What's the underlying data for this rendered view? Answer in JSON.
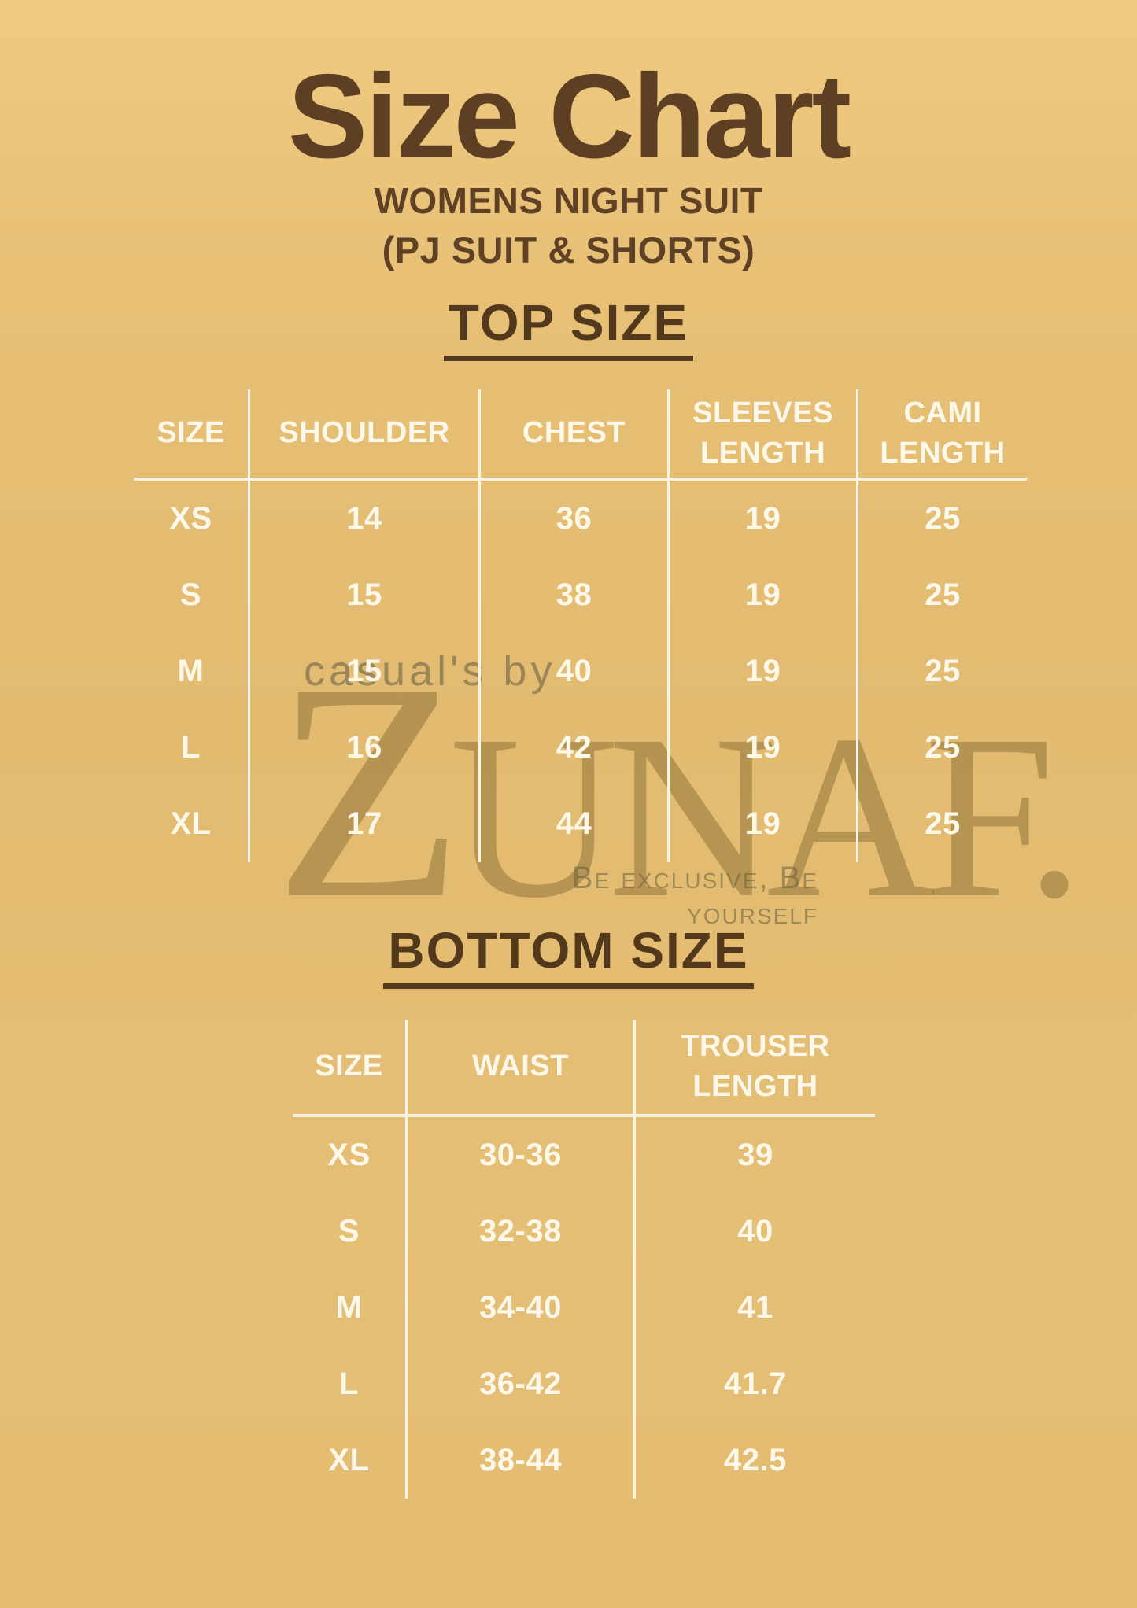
{
  "page": {
    "title": "Size Chart",
    "subtitle_line1": "WOMENS NIGHT SUIT",
    "subtitle_line2": "(PJ SUIT & SHORTS)"
  },
  "top_size": {
    "heading": "TOP SIZE",
    "columns": [
      "SIZE",
      "SHOULDER",
      "CHEST",
      "SLEEVES LENGTH",
      "CAMI LENGTH"
    ],
    "rows": [
      {
        "size": "XS",
        "shoulder": "14",
        "chest": "36",
        "sleeves_length": "19",
        "cami_length": "25"
      },
      {
        "size": "S",
        "shoulder": "15",
        "chest": "38",
        "sleeves_length": "19",
        "cami_length": "25"
      },
      {
        "size": "M",
        "shoulder": "15",
        "chest": "40",
        "sleeves_length": "19",
        "cami_length": "25"
      },
      {
        "size": "L",
        "shoulder": "16",
        "chest": "42",
        "sleeves_length": "19",
        "cami_length": "25"
      },
      {
        "size": "XL",
        "shoulder": "17",
        "chest": "44",
        "sleeves_length": "19",
        "cami_length": "25"
      }
    ]
  },
  "bottom_size": {
    "heading": "BOTTOM SIZE",
    "columns": [
      "SIZE",
      "WAIST",
      "TROUSER LENGTH"
    ],
    "rows": [
      {
        "size": "XS",
        "waist": "30-36",
        "trouser_length": "39"
      },
      {
        "size": "S",
        "waist": "32-38",
        "trouser_length": "40"
      },
      {
        "size": "M",
        "waist": "34-40",
        "trouser_length": "41"
      },
      {
        "size": "L",
        "waist": "36-42",
        "trouser_length": "41.7"
      },
      {
        "size": "XL",
        "waist": "38-44",
        "trouser_length": "42.5"
      }
    ]
  },
  "watermark": {
    "prefix": "casual's by",
    "brand_initial": "Z",
    "brand_rest": "UNAF.",
    "tagline": "Be exclusive, Be yourself"
  },
  "colors": {
    "background": "#e5bf75",
    "heading_brown": "#5d4023",
    "table_text": "#fdf8ea",
    "divider_white": "#f8f2e3",
    "watermark_gold": "#8a713d"
  }
}
